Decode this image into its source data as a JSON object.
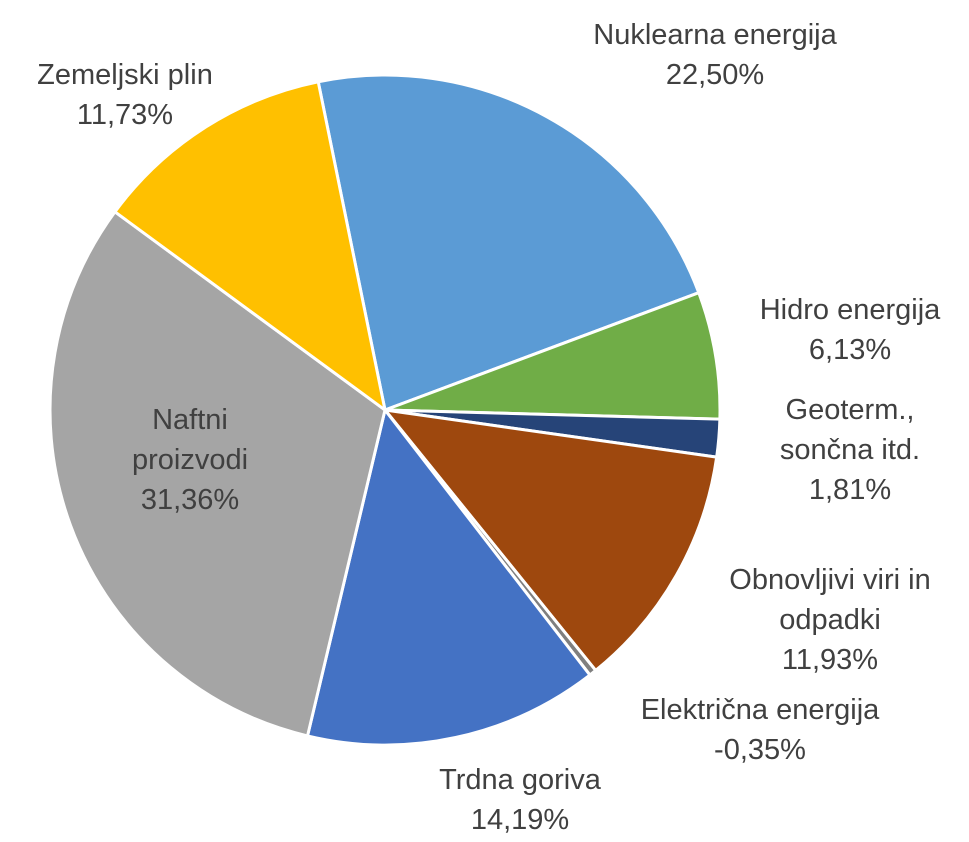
{
  "chart_data": {
    "type": "pie",
    "categories": [
      "Nuklearna energija",
      "Hidro energija",
      "Geoterm., sončna itd.",
      "Obnovljivi viri in odpadki",
      "Električna energija",
      "Trdna goriva",
      "Naftni proizvodi",
      "Zemeljski plin"
    ],
    "values": [
      22.5,
      6.13,
      1.81,
      11.93,
      -0.35,
      14.19,
      31.36,
      11.73
    ],
    "value_labels": [
      "22,50%",
      "6,13%",
      "1,81%",
      "11,93%",
      "-0,35%",
      "14,19%",
      "31,36%",
      "11,73%"
    ],
    "colors": [
      "#5b9bd5",
      "#70ad47",
      "#264478",
      "#9e480e",
      "#7f7f7f",
      "#4472c4",
      "#a5a5a5",
      "#ffc000"
    ]
  }
}
